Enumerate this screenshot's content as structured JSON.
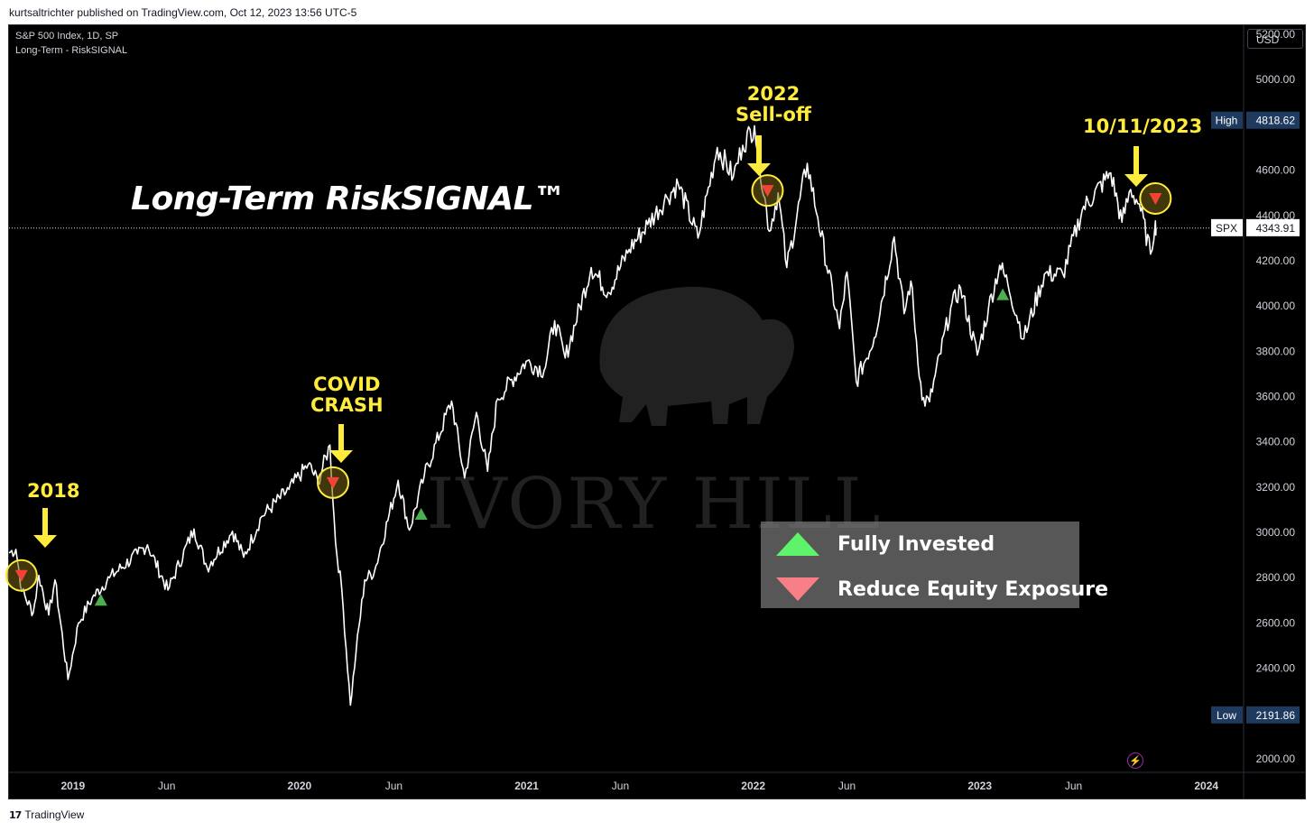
{
  "publisher_line": "kurtsaltrichter published on TradingView.com, Oct 12, 2023 13:56 UTC-5",
  "footer_brand": "TradingView",
  "footer_logo_glyph": "17",
  "header": {
    "symbol_line": "S&P 500 Index, 1D, SP",
    "indicator_line": "Long-Term - RiskSIGNAL"
  },
  "currency": "USD",
  "title": "Long-Term RiskSIGNAL™",
  "watermark": "IVORY HILL",
  "annotations": {
    "a2018": "2018",
    "covid1": "COVID",
    "covid2": "CRASH",
    "selloff1": "2022",
    "selloff2": "Sell-off",
    "recent": "10/11/2023"
  },
  "legend": {
    "buy_label": "Fully Invested",
    "sell_label": "Reduce Equity Exposure"
  },
  "labels": {
    "high_tag": "High",
    "high_value": "4818.62",
    "low_tag": "Low",
    "low_value": "2191.86",
    "last_tag": "SPX",
    "last_value": "4343.91"
  },
  "colors": {
    "buy": "#4caf50",
    "sell": "#f44336",
    "annotation": "#ffeb3b",
    "price_line": "#ffffff",
    "panel_bg": "#000000"
  },
  "chart_data": {
    "type": "line",
    "title": "S&P 500 Index, 1D, SP",
    "ylim": [
      1940,
      5240
    ],
    "y_ticks": [
      2000,
      2200,
      2400,
      2600,
      2800,
      3000,
      3200,
      3400,
      3600,
      3800,
      4000,
      4200,
      4400,
      4600,
      4800,
      5000,
      5200
    ],
    "y_tick_labels": [
      "2000.00",
      "2200.00",
      "2400.00",
      "2600.00",
      "2800.00",
      "3000.00",
      "3200.00",
      "3400.00",
      "3600.00",
      "3800.00",
      "4000.00",
      "4200.00",
      "4400.00",
      "4600.00",
      "4800.00",
      "5000.00",
      "5200.00"
    ],
    "x_range": [
      "2018-09-20",
      "2024-03-01"
    ],
    "x_ticks": [
      {
        "date": "2019-01-01",
        "label": "2019"
      },
      {
        "date": "2019-06-01",
        "label": "Jun"
      },
      {
        "date": "2020-01-01",
        "label": "2020"
      },
      {
        "date": "2020-06-01",
        "label": "Jun"
      },
      {
        "date": "2021-01-01",
        "label": "2021"
      },
      {
        "date": "2021-06-01",
        "label": "Jun"
      },
      {
        "date": "2022-01-01",
        "label": "2022"
      },
      {
        "date": "2022-06-01",
        "label": "Jun"
      },
      {
        "date": "2023-01-01",
        "label": "2023"
      },
      {
        "date": "2023-06-01",
        "label": "Jun"
      },
      {
        "date": "2024-01-01",
        "label": "2024"
      }
    ],
    "series": [
      {
        "points": [
          [
            "2018-09-20",
            2910
          ],
          [
            "2018-10-01",
            2925
          ],
          [
            "2018-10-11",
            2740
          ],
          [
            "2018-10-29",
            2645
          ],
          [
            "2018-11-07",
            2810
          ],
          [
            "2018-11-23",
            2635
          ],
          [
            "2018-12-03",
            2790
          ],
          [
            "2018-12-24",
            2350
          ],
          [
            "2019-01-10",
            2600
          ],
          [
            "2019-02-01",
            2710
          ],
          [
            "2019-03-01",
            2800
          ],
          [
            "2019-04-15",
            2905
          ],
          [
            "2019-05-01",
            2945
          ],
          [
            "2019-06-03",
            2745
          ],
          [
            "2019-07-15",
            3015
          ],
          [
            "2019-08-05",
            2845
          ],
          [
            "2019-09-15",
            3005
          ],
          [
            "2019-10-03",
            2890
          ],
          [
            "2019-11-01",
            3070
          ],
          [
            "2019-12-15",
            3190
          ],
          [
            "2020-01-15",
            3300
          ],
          [
            "2020-01-31",
            3225
          ],
          [
            "2020-02-19",
            3386
          ],
          [
            "2020-02-28",
            2955
          ],
          [
            "2020-03-09",
            2750
          ],
          [
            "2020-03-23",
            2237
          ],
          [
            "2020-04-01",
            2470
          ],
          [
            "2020-04-15",
            2790
          ],
          [
            "2020-05-01",
            2830
          ],
          [
            "2020-06-08",
            3230
          ],
          [
            "2020-06-26",
            3010
          ],
          [
            "2020-07-20",
            3250
          ],
          [
            "2020-09-02",
            3580
          ],
          [
            "2020-09-23",
            3240
          ],
          [
            "2020-10-12",
            3530
          ],
          [
            "2020-10-30",
            3270
          ],
          [
            "2020-11-15",
            3590
          ],
          [
            "2020-12-31",
            3755
          ],
          [
            "2021-01-29",
            3715
          ],
          [
            "2021-02-15",
            3935
          ],
          [
            "2021-03-04",
            3770
          ],
          [
            "2021-04-15",
            4170
          ],
          [
            "2021-05-12",
            4060
          ],
          [
            "2021-06-15",
            4250
          ],
          [
            "2021-07-15",
            4360
          ],
          [
            "2021-08-15",
            4480
          ],
          [
            "2021-09-02",
            4540
          ],
          [
            "2021-10-04",
            4300
          ],
          [
            "2021-11-04",
            4700
          ],
          [
            "2021-11-30",
            4570
          ],
          [
            "2021-12-15",
            4710
          ],
          [
            "2022-01-03",
            4796
          ],
          [
            "2022-01-27",
            4330
          ],
          [
            "2022-02-10",
            4500
          ],
          [
            "2022-02-24",
            4170
          ],
          [
            "2022-03-29",
            4630
          ],
          [
            "2022-04-15",
            4390
          ],
          [
            "2022-05-20",
            3900
          ],
          [
            "2022-06-01",
            4150
          ],
          [
            "2022-06-16",
            3666
          ],
          [
            "2022-07-15",
            3860
          ],
          [
            "2022-08-16",
            4305
          ],
          [
            "2022-09-01",
            3966
          ],
          [
            "2022-09-12",
            4110
          ],
          [
            "2022-09-30",
            3585
          ],
          [
            "2022-10-12",
            3577
          ],
          [
            "2022-11-15",
            3990
          ],
          [
            "2022-12-01",
            4080
          ],
          [
            "2022-12-28",
            3783
          ],
          [
            "2023-01-15",
            3990
          ],
          [
            "2023-02-02",
            4180
          ],
          [
            "2023-02-15",
            4100
          ],
          [
            "2023-03-13",
            3855
          ],
          [
            "2023-04-15",
            4140
          ],
          [
            "2023-05-15",
            4140
          ],
          [
            "2023-06-15",
            4425
          ],
          [
            "2023-07-31",
            4588
          ],
          [
            "2023-08-18",
            4370
          ],
          [
            "2023-09-01",
            4515
          ],
          [
            "2023-09-15",
            4450
          ],
          [
            "2023-10-03",
            4229
          ],
          [
            "2023-10-11",
            4376
          ],
          [
            "2023-10-12",
            4343.91
          ]
        ]
      }
    ],
    "signals": [
      {
        "date": "2018-10-10",
        "type": "sell",
        "value": 2810
      },
      {
        "date": "2019-02-15",
        "type": "buy",
        "value": 2700
      },
      {
        "date": "2020-02-24",
        "type": "sell",
        "value": 3220
      },
      {
        "date": "2020-07-15",
        "type": "buy",
        "value": 3080
      },
      {
        "date": "2022-01-24",
        "type": "sell",
        "value": 4510
      },
      {
        "date": "2023-02-07",
        "type": "buy",
        "value": 4050
      },
      {
        "date": "2023-10-11",
        "type": "sell",
        "value": 4475
      }
    ],
    "high": 4818.62,
    "low": 2191.86,
    "last": 4343.91
  }
}
